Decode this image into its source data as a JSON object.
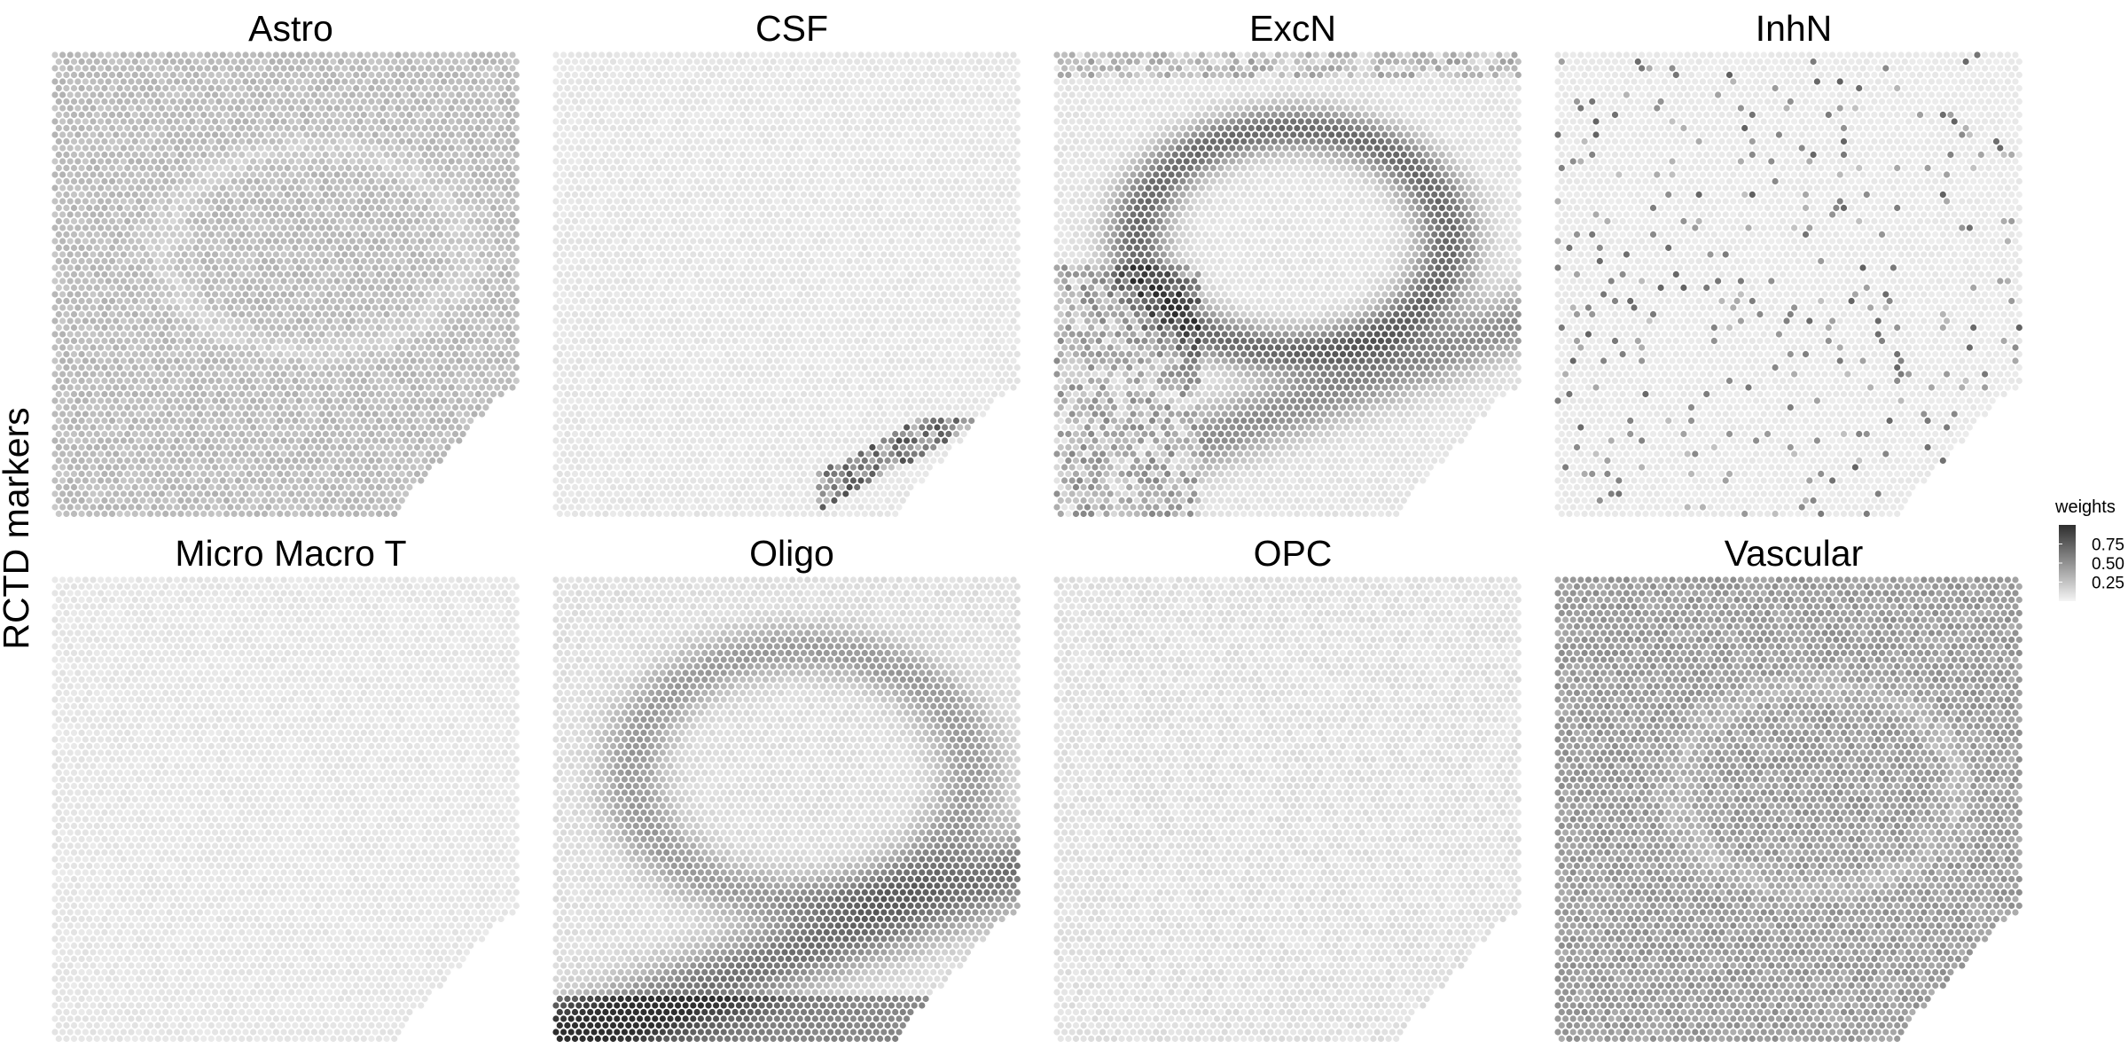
{
  "chart_data": {
    "type": "heatmap",
    "row_label": "RCTD markers",
    "panels": [
      {
        "title": "Astro",
        "pattern": "astro"
      },
      {
        "title": "CSF",
        "pattern": "csf"
      },
      {
        "title": "ExcN",
        "pattern": "excn"
      },
      {
        "title": "InhN",
        "pattern": "inhn"
      },
      {
        "title": "Micro  Macro  T",
        "pattern": "micro"
      },
      {
        "title": "Oligo",
        "pattern": "oligo"
      },
      {
        "title": "OPC",
        "pattern": "opc"
      },
      {
        "title": "Vascular",
        "pattern": "vascular"
      }
    ],
    "legend": {
      "title": "weights",
      "ticks": [
        0.75,
        0.5,
        0.25
      ],
      "tick_labels": [
        "0.75",
        "0.50",
        "0.25"
      ],
      "range": [
        0,
        1
      ],
      "colors": [
        "#f5f5f5",
        "#2e2e2e"
      ]
    }
  }
}
